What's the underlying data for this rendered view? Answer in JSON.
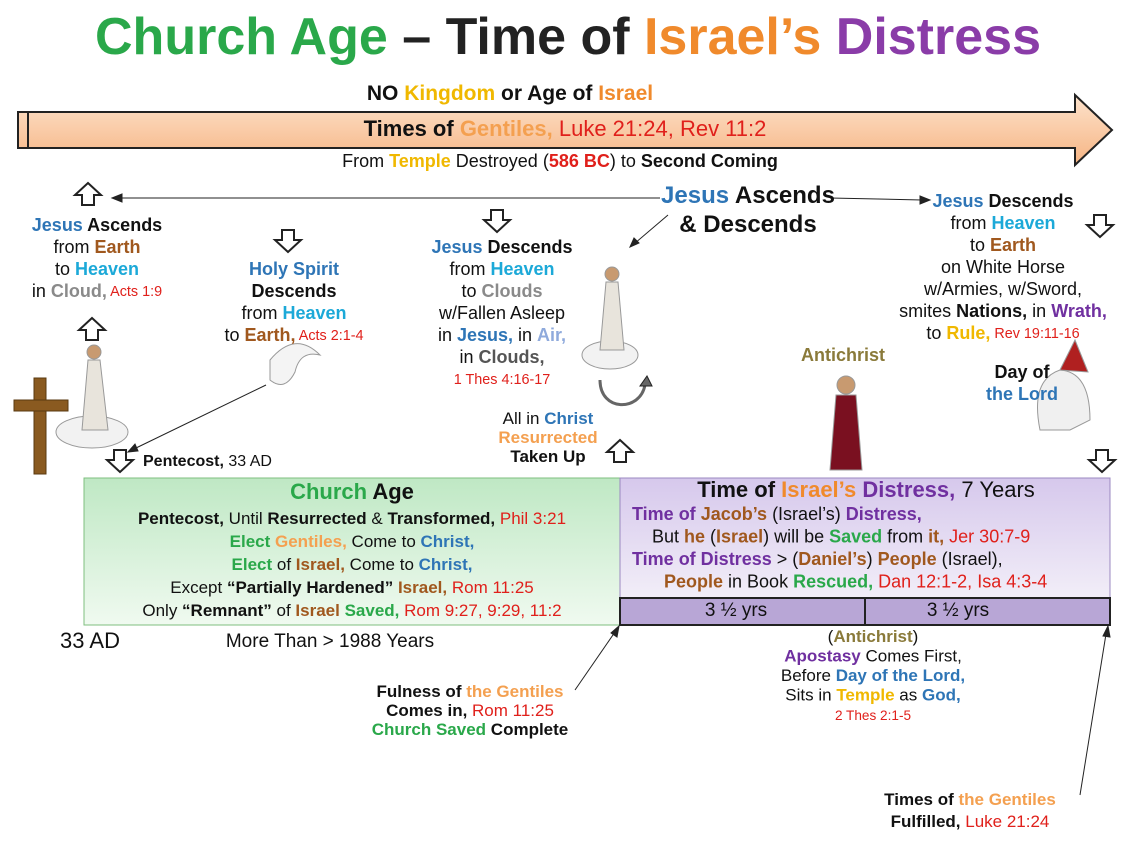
{
  "title": [
    {
      "text": "Church Age",
      "color": "#2aa84a"
    },
    {
      "text": " – Time of ",
      "color": "#222222"
    },
    {
      "text": "Israel’s",
      "color": "#f08a2c"
    },
    {
      "text": " Distress",
      "color": "#8a3ca8"
    }
  ],
  "blocks": {
    "banner": [
      [
        {
          "text": "NO ",
          "bold": true
        },
        {
          "text": "Kingdom",
          "color": "#f0b800"
        },
        {
          "text": " or Age of ",
          "bold": true
        },
        {
          "text": "Israel",
          "color": "#f08a2c"
        }
      ]
    ],
    "arrow_text": [
      [
        {
          "text": "Times of ",
          "bold": true
        },
        {
          "text": "Gentiles,",
          "color": "#f4a050"
        },
        {
          "text": "  Luke 21:24, Rev 11:2",
          "color": "#e0201b"
        }
      ]
    ],
    "arrow_sub": [
      [
        "From ",
        {
          "text": "Temple",
          "color": "#f0b800"
        },
        " Destroyed (",
        {
          "text": "586 BC",
          "color": "#e0201b",
          "bold": true
        },
        ") to ",
        {
          "text": "Second Coming",
          "bold": true
        }
      ]
    ],
    "center_label": [
      [
        {
          "text": "Jesus",
          "color": "#2e75b6"
        },
        {
          "text": " Ascends",
          "bold": true
        }
      ],
      [
        {
          "text": "& Descends",
          "bold": true
        }
      ]
    ],
    "ascend": [
      [
        {
          "text": "Jesus",
          "color": "#2e75b6"
        },
        {
          "text": " Ascends",
          "bold": true
        }
      ],
      [
        "from ",
        {
          "text": "Earth",
          "color": "#a0581e"
        }
      ],
      [
        "to ",
        {
          "text": "Heaven",
          "color": "#1ca9d8"
        }
      ],
      [
        "in ",
        {
          "text": "Cloud,",
          "color": "#8a8a8a"
        },
        {
          "text": " Acts 1:9",
          "color": "#e0201b",
          "small": true
        }
      ]
    ],
    "holy_spirit": [
      [
        {
          "text": "Holy Spirit",
          "color": "#2e75b6"
        }
      ],
      [
        {
          "text": "Descends",
          "bold": true
        }
      ],
      [
        "from ",
        {
          "text": "Heaven",
          "color": "#1ca9d8"
        }
      ],
      [
        "to ",
        {
          "text": "Earth,",
          "color": "#a0581e"
        },
        {
          "text": " Acts 2:1-4",
          "color": "#e0201b",
          "small": true
        }
      ]
    ],
    "descend_clouds": [
      [
        {
          "text": "Jesus",
          "color": "#2e75b6"
        },
        {
          "text": " Descends",
          "bold": true
        }
      ],
      [
        "from ",
        {
          "text": "Heaven",
          "color": "#1ca9d8"
        }
      ],
      [
        "to ",
        {
          "text": "Clouds",
          "color": "#8a8a8a"
        }
      ],
      [
        "w/Fallen Asleep"
      ],
      [
        "in ",
        {
          "text": "Jesus,",
          "color": "#2e75b6"
        },
        " in ",
        {
          "text": "Air,",
          "color": "#8faadc"
        }
      ],
      [
        "in ",
        {
          "text": "Clouds,",
          "color": "#555555"
        }
      ],
      [
        {
          "text": "1 Thes 4:16-17",
          "color": "#e0201b",
          "small": true
        }
      ]
    ],
    "descend_earth": [
      [
        {
          "text": "Jesus",
          "color": "#2e75b6"
        },
        {
          "text": " Descends",
          "bold": true
        }
      ],
      [
        "from ",
        {
          "text": "Heaven",
          "color": "#1ca9d8"
        }
      ],
      [
        "to ",
        {
          "text": "Earth",
          "color": "#a0581e"
        }
      ],
      [
        "on White Horse"
      ],
      [
        "w/Armies, w/Sword,"
      ],
      [
        "smites ",
        {
          "text": "Nations,",
          "bold": true
        },
        " in ",
        {
          "text": "Wrath,",
          "color": "#7030a0"
        }
      ],
      [
        "to ",
        {
          "text": "Rule,",
          "color": "#f0b800"
        },
        {
          "text": " Rev 19:11-16",
          "color": "#e0201b",
          "small": true
        }
      ]
    ],
    "antichrist": [
      [
        {
          "text": "Antichrist",
          "color": "#8a7a3a"
        }
      ]
    ],
    "day_of_lord": [
      [
        {
          "text": "Day of",
          "bold": true
        }
      ],
      [
        {
          "text": "the Lord",
          "color": "#2e75b6"
        }
      ]
    ],
    "all_in_christ": [
      [
        "All in ",
        {
          "text": "Christ",
          "color": "#2e75b6"
        }
      ],
      [
        {
          "text": "Resurrected",
          "color": "#f4a050"
        }
      ],
      [
        {
          "text": "Taken Up",
          "bold": true
        }
      ]
    ],
    "pentecost": [
      [
        {
          "text": "Pentecost,",
          "bold": true
        },
        " 33 ",
        "AD"
      ]
    ],
    "church_heading": [
      [
        {
          "text": "Church",
          "color": "#2aa84a"
        },
        {
          "text": " Age",
          "bold": true
        }
      ]
    ],
    "church_lines": [
      [
        {
          "text": "Pentecost,",
          "bold": true
        },
        " Until ",
        {
          "text": "Resurrected",
          "bold": true
        },
        " & ",
        {
          "text": "Transformed,",
          "bold": true
        },
        {
          "text": " Phil 3:21",
          "color": "#e0201b"
        }
      ],
      [
        {
          "text": "Elect",
          "color": "#2aa84a"
        },
        {
          "text": " Gentiles,",
          "color": "#f4a050"
        },
        " Come to ",
        {
          "text": "Christ,",
          "color": "#2e75b6"
        }
      ],
      [
        {
          "text": "Elect",
          "color": "#2aa84a"
        },
        " of ",
        {
          "text": "Israel,",
          "color": "#a0581e"
        },
        " Come to ",
        {
          "text": "Christ,",
          "color": "#2e75b6"
        }
      ],
      [
        "Except ",
        {
          "text": "“Partially Hardened”",
          "bold": true
        },
        {
          "text": " Israel,",
          "color": "#a0581e"
        },
        {
          "text": " Rom 11:25",
          "color": "#e0201b"
        }
      ],
      [
        "Only ",
        {
          "text": "“Remnant”",
          "bold": true
        },
        " of ",
        {
          "text": "Israel",
          "color": "#a0581e"
        },
        {
          "text": " Saved,",
          "color": "#2aa84a"
        },
        {
          "text": " Rom 9:27, 9:29, 11:2",
          "color": "#e0201b"
        }
      ]
    ],
    "distress_heading": [
      [
        {
          "text": "Time of ",
          "bold": true
        },
        {
          "text": "Israel’s",
          "color": "#f08a2c"
        },
        {
          "text": " Distress,",
          "color": "#7030a0"
        },
        " 7 Years"
      ]
    ],
    "distress_lines": [
      [
        {
          "text": "Time of ",
          "color": "#7030a0"
        },
        {
          "text": "Jacob’s",
          "color": "#a0581e"
        },
        " (Israel’s) ",
        {
          "text": "Distress,",
          "color": "#7030a0"
        }
      ],
      [
        "But ",
        {
          "text": "he",
          "color": "#a0581e"
        },
        " (",
        {
          "text": "Israel",
          "color": "#a0581e"
        },
        ") will be ",
        {
          "text": "Saved",
          "color": "#2aa84a"
        },
        " from ",
        {
          "text": "it,",
          "color": "#a0581e"
        },
        {
          "text": "  Jer 30:7-9",
          "color": "#e0201b"
        }
      ],
      [
        {
          "text": "Time of Distress",
          "color": "#7030a0"
        },
        " > (",
        {
          "text": "Daniel’s",
          "color": "#a0581e"
        },
        ") ",
        {
          "text": "People",
          "color": "#a0581e"
        },
        " (Israel),"
      ],
      [
        {
          "text": "People",
          "color": "#a0581e"
        },
        " in Book ",
        {
          "text": "Rescued,",
          "color": "#2aa84a"
        },
        {
          "text": " Dan 12:1-2, Isa 4:3-4",
          "color": "#e0201b"
        }
      ]
    ],
    "half_1": [
      [
        "3 ½ yrs"
      ]
    ],
    "half_2": [
      [
        "3 ½ yrs"
      ]
    ],
    "ad_33": [
      [
        "33 AD"
      ]
    ],
    "more_than": [
      [
        "More Than > 1988 Years"
      ]
    ],
    "fulness": [
      [
        {
          "text": "Fulness of ",
          "bold": true
        },
        {
          "text": "the Gentiles",
          "color": "#f4a050"
        }
      ],
      [
        {
          "text": "Comes in, ",
          "bold": true
        },
        {
          "text": "Rom 11:25",
          "color": "#e0201b"
        }
      ],
      [
        {
          "text": "Church Saved",
          "color": "#2aa84a"
        },
        {
          "text": " Complete",
          "bold": true
        }
      ]
    ],
    "apostasy": [
      [
        "(",
        {
          "text": "Antichrist",
          "color": "#8a7a3a"
        },
        ")"
      ],
      [
        {
          "text": "Apostasy",
          "color": "#7030a0"
        },
        " Comes First,"
      ],
      [
        "Before ",
        {
          "text": "Day of the Lord,",
          "color": "#2e75b6"
        }
      ],
      [
        "Sits in ",
        {
          "text": "Temple",
          "color": "#f0b800"
        },
        " as ",
        {
          "text": "God,",
          "color": "#2e75b6"
        }
      ],
      [
        {
          "text": "2 Thes 2:1-5",
          "color": "#e0201b",
          "small": true
        }
      ]
    ],
    "fulfilled": [
      [
        {
          "text": "Times of ",
          "bold": true
        },
        {
          "text": "the Gentiles",
          "color": "#f4a050"
        }
      ],
      [
        {
          "text": "Fulfilled, ",
          "bold": true
        },
        {
          "text": "Luke 21:24",
          "color": "#e0201b"
        }
      ]
    ]
  }
}
